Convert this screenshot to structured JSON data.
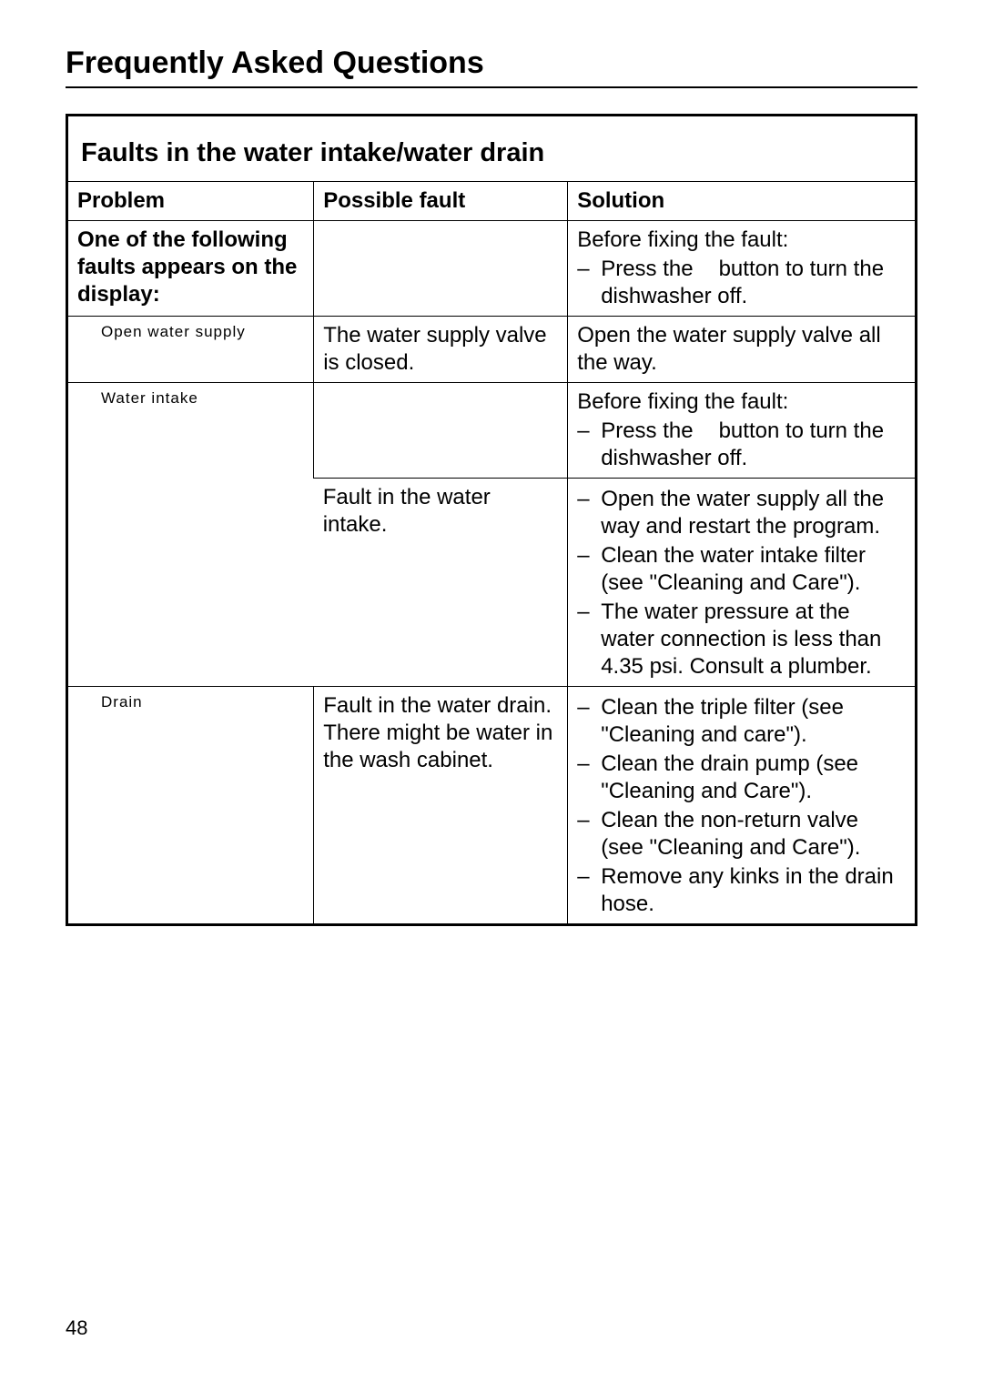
{
  "page": {
    "title": "Frequently Asked Questions",
    "number": "48"
  },
  "section": {
    "heading": "Faults in the water intake/water drain"
  },
  "table": {
    "headers": {
      "problem": "Problem",
      "possible_fault": "Possible fault",
      "solution": "Solution"
    },
    "intro_row": {
      "problem": "One of the following faults appears on the display:",
      "possible_fault": "",
      "solution_pre": "Before fixing the fault:",
      "solution_item_prefix": "Press the",
      "solution_item_suffix": "button to turn the dishwasher off."
    },
    "row_open_water": {
      "problem_code": "Open water supply",
      "possible_fault": "The water supply valve is closed.",
      "solution": "Open the water supply valve all the way."
    },
    "row_water_intake_top": {
      "problem_code": "Water intake",
      "possible_fault": "",
      "solution_pre": "Before fixing the fault:",
      "solution_item_prefix": "Press the",
      "solution_item_suffix": "button to turn the dishwasher off."
    },
    "row_water_intake_bottom": {
      "possible_fault": "Fault in the water intake.",
      "sol1": "Open the water supply all the way and restart the program.",
      "sol2": "Clean the water intake filter (see \"Cleaning and Care\").",
      "sol3": "The water pressure at the water connection is less than 4.35 psi. Consult a plumber."
    },
    "row_drain": {
      "problem_code": "Drain",
      "possible_fault": "Fault in the water drain. There might be water in the wash cabinet.",
      "sol1": "Clean the triple filter (see \"Cleaning and care\").",
      "sol2": "Clean the drain pump (see \"Cleaning and Care\").",
      "sol3": "Clean the non-return valve (see \"Cleaning and Care\").",
      "sol4": "Remove any kinks in the drain hose."
    }
  }
}
